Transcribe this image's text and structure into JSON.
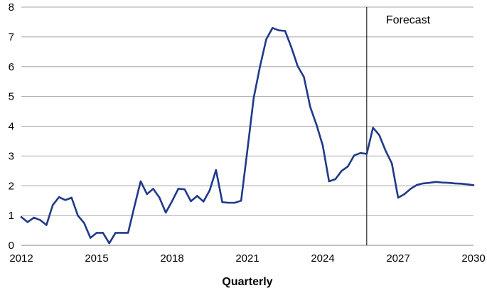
{
  "chart_data": {
    "type": "line",
    "title": "",
    "xlabel": "Quarterly",
    "ylabel": "",
    "xlim": [
      2012,
      2030
    ],
    "ylim": [
      0,
      8
    ],
    "x_ticks": [
      "2012",
      "2015",
      "2018",
      "2021",
      "2024",
      "2027",
      "2030"
    ],
    "y_ticks": [
      "0",
      "1",
      "2",
      "3",
      "4",
      "5",
      "6",
      "7",
      "8"
    ],
    "grid": "horizontal",
    "legend": "none",
    "annotation": {
      "text": "Forecast",
      "x": 2025.75
    },
    "series": [
      {
        "color": "#1f3a8a",
        "points": [
          [
            2012.0,
            0.95
          ],
          [
            2012.25,
            0.78
          ],
          [
            2012.5,
            0.93
          ],
          [
            2012.75,
            0.85
          ],
          [
            2013.0,
            0.68
          ],
          [
            2013.25,
            1.35
          ],
          [
            2013.5,
            1.62
          ],
          [
            2013.75,
            1.52
          ],
          [
            2014.0,
            1.6
          ],
          [
            2014.25,
            1.0
          ],
          [
            2014.5,
            0.75
          ],
          [
            2014.75,
            0.25
          ],
          [
            2015.0,
            0.42
          ],
          [
            2015.25,
            0.42
          ],
          [
            2015.5,
            0.07
          ],
          [
            2015.75,
            0.42
          ],
          [
            2016.0,
            0.42
          ],
          [
            2016.25,
            0.42
          ],
          [
            2016.5,
            1.3
          ],
          [
            2016.75,
            2.15
          ],
          [
            2017.0,
            1.72
          ],
          [
            2017.25,
            1.9
          ],
          [
            2017.5,
            1.6
          ],
          [
            2017.75,
            1.1
          ],
          [
            2018.0,
            1.48
          ],
          [
            2018.25,
            1.9
          ],
          [
            2018.5,
            1.88
          ],
          [
            2018.75,
            1.48
          ],
          [
            2019.0,
            1.66
          ],
          [
            2019.25,
            1.47
          ],
          [
            2019.5,
            1.85
          ],
          [
            2019.75,
            2.53
          ],
          [
            2020.0,
            1.45
          ],
          [
            2020.25,
            1.43
          ],
          [
            2020.5,
            1.43
          ],
          [
            2020.75,
            1.5
          ],
          [
            2021.0,
            3.2
          ],
          [
            2021.25,
            4.95
          ],
          [
            2021.5,
            6.0
          ],
          [
            2021.75,
            6.92
          ],
          [
            2022.0,
            7.3
          ],
          [
            2022.25,
            7.22
          ],
          [
            2022.5,
            7.2
          ],
          [
            2022.75,
            6.65
          ],
          [
            2023.0,
            6.02
          ],
          [
            2023.25,
            5.65
          ],
          [
            2023.5,
            4.65
          ],
          [
            2023.75,
            4.05
          ],
          [
            2024.0,
            3.35
          ],
          [
            2024.25,
            2.15
          ],
          [
            2024.5,
            2.22
          ],
          [
            2024.75,
            2.5
          ],
          [
            2025.0,
            2.65
          ],
          [
            2025.25,
            3.02
          ],
          [
            2025.5,
            3.1
          ],
          [
            2025.75,
            3.07
          ],
          [
            2026.0,
            3.95
          ],
          [
            2026.25,
            3.7
          ],
          [
            2026.5,
            3.18
          ],
          [
            2026.75,
            2.75
          ],
          [
            2027.0,
            1.6
          ],
          [
            2027.25,
            1.72
          ],
          [
            2027.5,
            1.9
          ],
          [
            2027.75,
            2.03
          ],
          [
            2028.0,
            2.08
          ],
          [
            2028.25,
            2.1
          ],
          [
            2028.5,
            2.13
          ],
          [
            2028.75,
            2.11
          ],
          [
            2029.0,
            2.1
          ],
          [
            2029.25,
            2.08
          ],
          [
            2029.5,
            2.07
          ],
          [
            2029.75,
            2.05
          ],
          [
            2030.0,
            2.02
          ]
        ]
      }
    ]
  }
}
